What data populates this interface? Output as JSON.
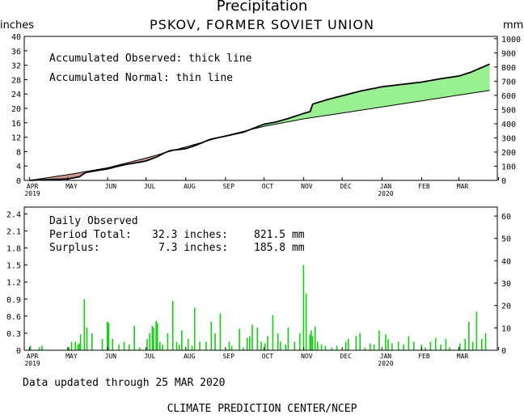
{
  "header": {
    "title": "Precipitation",
    "station": "PSKOV, FORMER SOVIET UNION",
    "left_unit": "inches",
    "right_unit": "mm"
  },
  "chart_data": [
    {
      "type": "area",
      "name": "accumulated",
      "legend": [
        "Accumulated Observed: thick line",
        "Accumulated Normal: thin line"
      ],
      "x_tick_labels": [
        "APR",
        "MAY",
        "JUN",
        "JUL",
        "AUG",
        "SEP",
        "OCT",
        "NOV",
        "DEC",
        "JAN",
        "FEB",
        "MAR"
      ],
      "x_year_labels": [
        {
          "month": "APR",
          "year": "2019"
        },
        {
          "month": "JAN",
          "year": "2020"
        }
      ],
      "xlim": [
        "2019-03-28",
        "2020-03-31"
      ],
      "ylim_inches": [
        0,
        40
      ],
      "y_ticks_inches": [
        0,
        4,
        8,
        12,
        16,
        20,
        24,
        28,
        32,
        36,
        40
      ],
      "y_ticks_mm": [
        0,
        100,
        200,
        300,
        400,
        500,
        600,
        700,
        800,
        900,
        1000
      ],
      "fill_colors": {
        "surplus": "#98f090",
        "deficit": "#c8988c"
      },
      "observed": {
        "x": [
          "2019-04-01",
          "2019-04-15",
          "2019-05-01",
          "2019-05-10",
          "2019-05-15",
          "2019-05-25",
          "2019-06-01",
          "2019-06-10",
          "2019-06-15",
          "2019-06-25",
          "2019-07-01",
          "2019-07-10",
          "2019-07-15",
          "2019-07-20",
          "2019-08-01",
          "2019-08-10",
          "2019-08-20",
          "2019-09-01",
          "2019-09-15",
          "2019-10-01",
          "2019-10-10",
          "2019-10-20",
          "2019-11-01",
          "2019-11-06",
          "2019-11-08",
          "2019-11-20",
          "2019-12-01",
          "2019-12-15",
          "2020-01-01",
          "2020-01-15",
          "2020-02-01",
          "2020-02-15",
          "2020-03-01",
          "2020-03-10",
          "2020-03-25"
        ],
        "y": [
          0.0,
          0.2,
          0.4,
          1.0,
          2.2,
          2.8,
          3.2,
          4.0,
          4.4,
          5.0,
          5.4,
          6.6,
          7.6,
          8.3,
          8.8,
          9.9,
          11.4,
          12.3,
          13.4,
          15.6,
          16.2,
          17.2,
          18.6,
          19.1,
          21.2,
          22.5,
          23.5,
          24.8,
          26.0,
          26.6,
          27.3,
          28.2,
          29.0,
          30.0,
          32.3
        ]
      },
      "normal": {
        "x": [
          "2019-04-01",
          "2019-05-01",
          "2019-06-01",
          "2019-07-01",
          "2019-08-01",
          "2019-09-01",
          "2019-10-01",
          "2019-11-01",
          "2019-12-01",
          "2020-01-01",
          "2020-02-01",
          "2020-03-01",
          "2020-03-25"
        ],
        "y": [
          0.0,
          1.6,
          3.5,
          6.2,
          9.3,
          12.4,
          15.0,
          17.1,
          18.7,
          20.4,
          22.1,
          23.7,
          25.0
        ]
      }
    },
    {
      "type": "bar",
      "name": "daily",
      "legend": {
        "heading": "Daily Observed",
        "period_label": "Period Total:",
        "period_value": "32.3 inches:",
        "period_mm": "821.5 mm",
        "surplus_label": "Surplus:",
        "surplus_value": "7.3 inches:",
        "surplus_mm": "185.8 mm"
      },
      "x_tick_labels": [
        "APR",
        "MAY",
        "JUN",
        "JUL",
        "AUG",
        "SEP",
        "OCT",
        "NOV",
        "DEC",
        "JAN",
        "FEB",
        "MAR"
      ],
      "x_year_labels": [
        {
          "month": "APR",
          "year": "2019"
        },
        {
          "month": "JAN",
          "year": "2020"
        }
      ],
      "ylim_inches": [
        0,
        2.52
      ],
      "y_tick_labels_inches": [
        "0",
        "0.3",
        "0.6",
        "0.9",
        "1.2",
        "1.5",
        "1.8",
        "2.1",
        "2.4"
      ],
      "y_ticks_inches": [
        0,
        0.3,
        0.6,
        0.9,
        1.2,
        1.5,
        1.8,
        2.1,
        2.4
      ],
      "y_ticks_mm": [
        0,
        10,
        20,
        30,
        40,
        50,
        60
      ],
      "bar_color": "#10d010",
      "dates": [
        "2019-04-02",
        "2019-04-09",
        "2019-04-11",
        "2019-05-02",
        "2019-05-04",
        "2019-05-07",
        "2019-05-09",
        "2019-05-10",
        "2019-05-11",
        "2019-05-14",
        "2019-05-16",
        "2019-05-20",
        "2019-05-28",
        "2019-06-01",
        "2019-06-02",
        "2019-06-05",
        "2019-06-10",
        "2019-06-14",
        "2019-06-18",
        "2019-06-22",
        "2019-06-26",
        "2019-07-02",
        "2019-07-04",
        "2019-07-06",
        "2019-07-07",
        "2019-07-09",
        "2019-07-10",
        "2019-07-12",
        "2019-07-14",
        "2019-07-18",
        "2019-07-22",
        "2019-07-25",
        "2019-07-27",
        "2019-07-29",
        "2019-08-03",
        "2019-08-06",
        "2019-08-08",
        "2019-08-12",
        "2019-08-17",
        "2019-08-21",
        "2019-08-24",
        "2019-08-28",
        "2019-09-04",
        "2019-09-06",
        "2019-09-12",
        "2019-09-15",
        "2019-09-18",
        "2019-09-20",
        "2019-09-22",
        "2019-09-26",
        "2019-09-29",
        "2019-10-02",
        "2019-10-04",
        "2019-10-08",
        "2019-10-12",
        "2019-10-14",
        "2019-10-18",
        "2019-10-20",
        "2019-10-25",
        "2019-10-29",
        "2019-11-01",
        "2019-11-03",
        "2019-11-06",
        "2019-11-07",
        "2019-11-08",
        "2019-11-10",
        "2019-11-12",
        "2019-11-15",
        "2019-11-18",
        "2019-11-23",
        "2019-11-27",
        "2019-12-04",
        "2019-12-06",
        "2019-12-12",
        "2019-12-15",
        "2019-12-19",
        "2019-12-23",
        "2019-12-26",
        "2019-12-30",
        "2020-01-04",
        "2020-01-06",
        "2020-01-09",
        "2020-01-14",
        "2020-01-18",
        "2020-01-22",
        "2020-01-26",
        "2020-02-01",
        "2020-02-04",
        "2020-02-08",
        "2020-02-12",
        "2020-02-16",
        "2020-02-20",
        "2020-02-23",
        "2020-03-02",
        "2020-03-06",
        "2020-03-09",
        "2020-03-12",
        "2020-03-15",
        "2020-03-19",
        "2020-03-22"
      ],
      "values": [
        0.08,
        0.05,
        0.08,
        0.05,
        0.15,
        0.15,
        0.1,
        0.12,
        0.28,
        0.9,
        0.4,
        0.3,
        0.2,
        0.5,
        0.48,
        0.2,
        0.1,
        0.15,
        0.1,
        0.43,
        0.05,
        0.2,
        0.3,
        0.43,
        0.4,
        0.52,
        0.48,
        0.15,
        0.1,
        0.3,
        0.87,
        0.15,
        0.1,
        0.35,
        0.2,
        0.08,
        0.75,
        0.15,
        0.15,
        0.5,
        0.3,
        0.65,
        0.15,
        0.08,
        0.38,
        0.05,
        0.22,
        0.25,
        0.45,
        0.4,
        0.15,
        0.12,
        0.25,
        0.62,
        0.3,
        0.15,
        0.1,
        0.4,
        0.15,
        0.3,
        1.5,
        1.0,
        0.28,
        0.35,
        0.25,
        0.42,
        0.15,
        0.1,
        0.08,
        0.05,
        0.08,
        0.15,
        0.2,
        0.25,
        0.3,
        0.05,
        0.12,
        0.1,
        0.35,
        0.28,
        0.2,
        0.12,
        0.15,
        0.1,
        0.25,
        0.15,
        0.1,
        0.05,
        0.15,
        0.22,
        0.1,
        0.2,
        0.05,
        0.12,
        0.2,
        0.5,
        0.15,
        0.68,
        0.2,
        0.3
      ]
    }
  ],
  "footer": {
    "updated": "Data updated through 25 MAR 2020",
    "credit": "CLIMATE PREDICTION CENTER/NCEP"
  }
}
